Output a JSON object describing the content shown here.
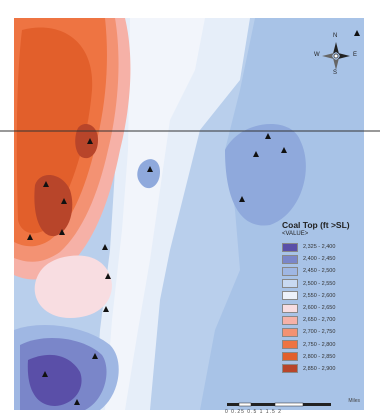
{
  "map": {
    "legend": {
      "title": "Coal Top (ft >SL)",
      "subtitle": "<VALUE>",
      "classes": [
        {
          "label": "2,325 - 2,400",
          "color": "#5a4fa8"
        },
        {
          "label": "2,400 - 2,450",
          "color": "#7a86c9"
        },
        {
          "label": "2,450 - 2,500",
          "color": "#9fb7e3"
        },
        {
          "label": "2,500 - 2,550",
          "color": "#c8d9f1"
        },
        {
          "label": "2,550 - 2,600",
          "color": "#ecf1fa"
        },
        {
          "label": "2,600 - 2,650",
          "color": "#f8dde1"
        },
        {
          "label": "2,650 - 2,700",
          "color": "#f6b1a7"
        },
        {
          "label": "2,700 - 2,750",
          "color": "#f39273"
        },
        {
          "label": "2,750 - 2,800",
          "color": "#ee7442"
        },
        {
          "label": "2,800 - 2,850",
          "color": "#e25f2b"
        },
        {
          "label": "2,850 - 2,900",
          "color": "#b8452a"
        }
      ]
    },
    "compass": {
      "n": "N",
      "s": "S",
      "e": "E",
      "w": "W"
    },
    "scale": {
      "unit": "Miles",
      "ticks": "0  0.25 0.5      1      1.5      2"
    }
  }
}
